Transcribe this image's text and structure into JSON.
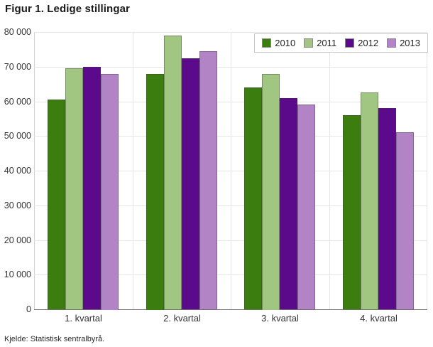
{
  "page": {
    "title": "Figur 1. Ledige stillingar",
    "source": "Kjelde: Statistisk sentralbyrå."
  },
  "chart_data": {
    "type": "bar",
    "title": "Figur 1. Ledige stillingar",
    "categories": [
      "1. kvartal",
      "2. kvartal",
      "3. kvartal",
      "4. kvartal"
    ],
    "series": [
      {
        "name": "2010",
        "color": "#3B7D0F",
        "values": [
          60500,
          68000,
          64000,
          56000
        ]
      },
      {
        "name": "2011",
        "color": "#A1C681",
        "values": [
          69500,
          79000,
          68000,
          62500
        ]
      },
      {
        "name": "2012",
        "color": "#5C0A8C",
        "values": [
          70000,
          72500,
          61000,
          58000
        ]
      },
      {
        "name": "2013",
        "color": "#B284C6",
        "values": [
          68000,
          74500,
          59000,
          51000
        ]
      }
    ],
    "ylim": [
      0,
      80000
    ],
    "ytick_values": [
      80000,
      70000,
      60000,
      50000,
      40000,
      30000,
      20000,
      10000,
      0
    ],
    "ytick_labels": [
      "80 000",
      "70 000",
      "60 000",
      "50 000",
      "40 000",
      "30 000",
      "20 000",
      "10 000",
      "0"
    ],
    "grid": true,
    "legend_position": "top-right",
    "legend_entries": [
      "2010",
      "2011",
      "2012",
      "2013"
    ],
    "source": "Kjelde: Statistisk sentralbyrå.",
    "colors": {
      "gridline": "#e5e5e5",
      "axis_line": "#6e6e6e",
      "background": "#ffffff"
    }
  }
}
